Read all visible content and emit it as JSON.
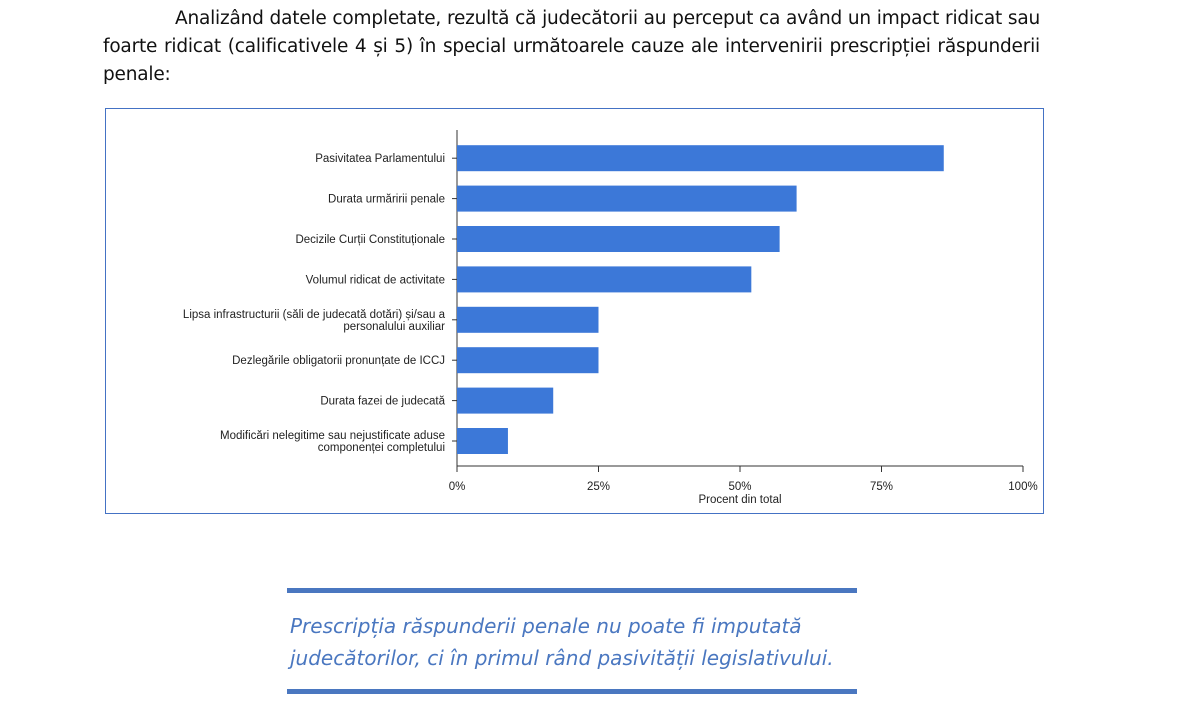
{
  "paragraph": "Analizând datele completate, rezultă că judecătorii au perceput ca având un impact ridicat sau foarte ridicat (calificativele 4 și 5) în special următoarele cauze ale intervenirii prescripției răspunderii penale:",
  "chart_data": {
    "type": "bar",
    "orientation": "horizontal",
    "categories": [
      [
        "Pasivitatea Parlamentului"
      ],
      [
        "Durata urmăririi penale"
      ],
      [
        "Decizile Curții Constituționale"
      ],
      [
        "Volumul ridicat de activitate"
      ],
      [
        "Lipsa infrastructurii (săli de judecată dotări) și/sau a",
        "personalului auxiliar"
      ],
      [
        "Dezlegările obligatorii pronunțate de ICCJ"
      ],
      [
        "Durata fazei de judecată"
      ],
      [
        "Modificări nelegitime sau nejustificate aduse",
        "componenței completului"
      ]
    ],
    "values": [
      86,
      60,
      57,
      52,
      25,
      25,
      17,
      9
    ],
    "xlabel": "Procent din total",
    "ylabel": "",
    "xlim": [
      0,
      100
    ],
    "xticks": [
      0,
      25,
      50,
      75,
      100
    ],
    "xtick_labels": [
      "0%",
      "25%",
      "50%",
      "75%",
      "100%"
    ],
    "bar_color": "#3c78d8",
    "grid": false
  },
  "quote": {
    "line1": "Prescripția răspunderii penale nu poate fi imputată",
    "line2": "judecătorilor, ci în primul rând pasivității legislativului."
  }
}
